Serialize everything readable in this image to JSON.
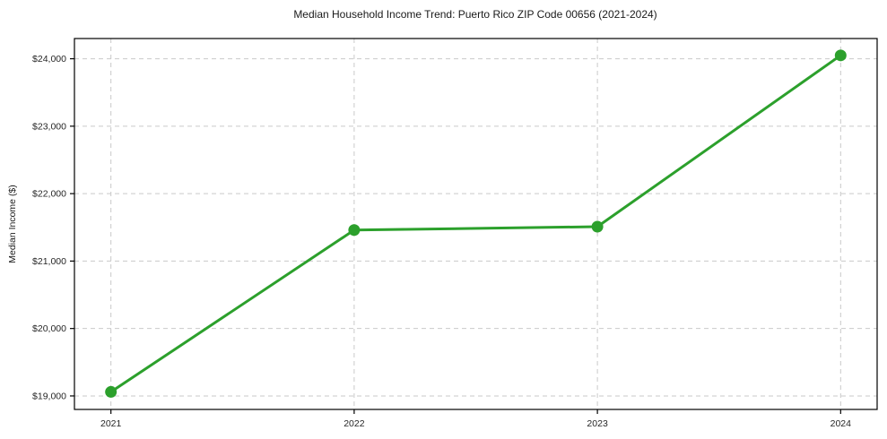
{
  "chart_data": {
    "type": "line",
    "title": "Median Household Income Trend: Puerto Rico ZIP Code 00656 (2021-2024)",
    "xlabel": "",
    "ylabel": "Median Income ($)",
    "x": [
      2021,
      2022,
      2023,
      2024
    ],
    "x_tick_labels": [
      "2021",
      "2022",
      "2023",
      "2024"
    ],
    "series": [
      {
        "name": "Median Household Income",
        "values": [
          19060,
          21460,
          21510,
          24050
        ]
      }
    ],
    "y_ticks": [
      19000,
      20000,
      21000,
      22000,
      23000,
      24000
    ],
    "y_tick_labels": [
      "$19,000",
      "$20,000",
      "$21,000",
      "$22,000",
      "$23,000",
      "$24,000"
    ],
    "xlim": [
      2020.85,
      2024.15
    ],
    "ylim": [
      18800,
      24300
    ],
    "grid": true,
    "grid_style": "dashed",
    "legend": "none",
    "colors": {
      "line": "#2ca02c",
      "marker": "#2ca02c",
      "grid": "#c9c9c9",
      "axis": "#000000",
      "background": "#ffffff",
      "text": "#1a1a1a"
    }
  }
}
